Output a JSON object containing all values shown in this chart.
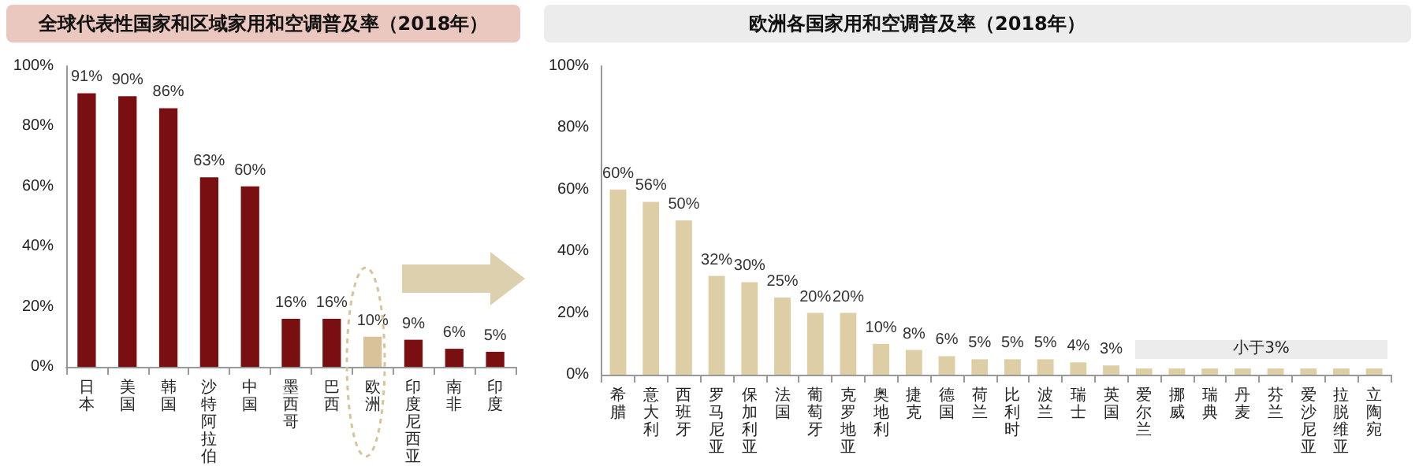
{
  "chart_data": [
    {
      "type": "bar",
      "title": "全球代表性国家和区域家用和空调普及率（2018年）",
      "categories": [
        "日本",
        "美国",
        "韩国",
        "沙特阿拉伯",
        "中国",
        "墨西哥",
        "巴西",
        "欧洲",
        "印度尼西亚",
        "南非",
        "印度"
      ],
      "values": [
        91,
        90,
        86,
        63,
        60,
        16,
        16,
        10,
        9,
        6,
        5
      ],
      "colors": [
        "#7a0f12",
        "#7a0f12",
        "#7a0f12",
        "#7a0f12",
        "#7a0f12",
        "#7a0f12",
        "#7a0f12",
        "#d8c29a",
        "#7a0f12",
        "#7a0f12",
        "#7a0f12"
      ],
      "value_labels": [
        "91%",
        "90%",
        "86%",
        "63%",
        "60%",
        "16%",
        "16%",
        "10%",
        "9%",
        "6%",
        "5%"
      ],
      "ylim": [
        0,
        100
      ],
      "yticks": [
        {
          "value": 0,
          "label": "0%"
        },
        {
          "value": 20,
          "label": "20%"
        },
        {
          "value": 40,
          "label": "40%"
        },
        {
          "value": 60,
          "label": "60%"
        },
        {
          "value": 80,
          "label": "80%"
        },
        {
          "value": 100,
          "label": "100%"
        }
      ],
      "grid": false
    },
    {
      "type": "bar",
      "title": "欧洲各国家用和空调普及率（2018年）",
      "categories": [
        "希腊",
        "意大利",
        "西班牙",
        "罗马尼亚",
        "保加利亚",
        "法国",
        "葡萄牙",
        "克罗地亚",
        "奥地利",
        "捷克",
        "德国",
        "荷兰",
        "比利时",
        "波兰",
        "瑞士",
        "英国",
        "爱尔兰",
        "挪威",
        "瑞典",
        "丹麦",
        "芬兰",
        "爱沙尼亚",
        "拉脱维亚",
        "立陶宛"
      ],
      "values": [
        60,
        56,
        50,
        32,
        30,
        25,
        20,
        20,
        10,
        8,
        6,
        5,
        5,
        5,
        4,
        3,
        2,
        2,
        2,
        2,
        2,
        2,
        2,
        2
      ],
      "color": "#ddceA5",
      "value_labels": [
        "60%",
        "56%",
        "50%",
        "32%",
        "30%",
        "25%",
        "20%",
        "20%",
        "10%",
        "8%",
        "6%",
        "5%",
        "5%",
        "5%",
        "4%",
        "3%",
        null,
        null,
        null,
        null,
        null,
        null,
        null,
        null
      ],
      "ylim": [
        0,
        100
      ],
      "yticks": [
        {
          "value": 0,
          "label": "0%"
        },
        {
          "value": 20,
          "label": "20%"
        },
        {
          "value": 40,
          "label": "40%"
        },
        {
          "value": 60,
          "label": "60%"
        },
        {
          "value": 80,
          "label": "80%"
        },
        {
          "value": 100,
          "label": "100%"
        }
      ],
      "annotations": [
        "小于3%"
      ],
      "grid": false
    }
  ]
}
